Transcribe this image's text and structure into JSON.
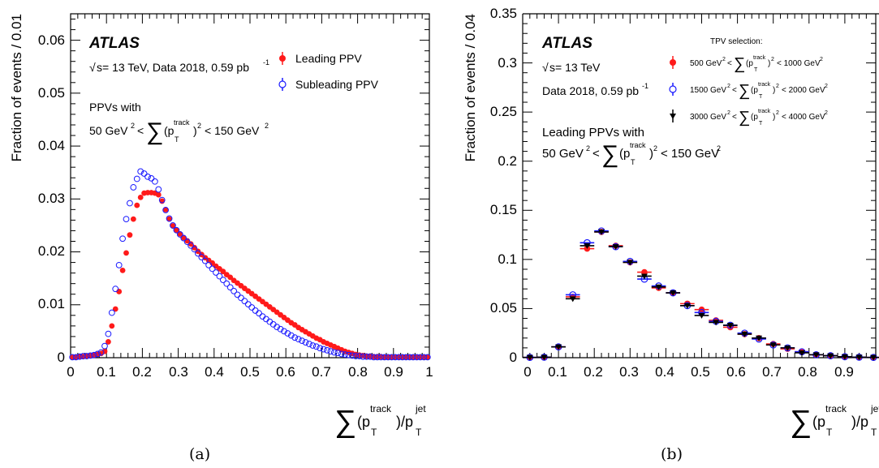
{
  "panels": [
    {
      "caption": "(a)",
      "atlas_label": "ATLAS",
      "energy_text": "s= 13 TeV, Data 2018, 0.59 pb",
      "lumi_exp": "-1",
      "selection_title": "PPVs with",
      "selection_range_prefix": "50 GeV",
      "selection_range_suffix": "< 150 GeV",
      "ylabel": "Fraction of events / 0.01",
      "yticks": [
        "0",
        "0.01",
        "0.02",
        "0.03",
        "0.04",
        "0.05",
        "0.06"
      ],
      "xticks": [
        "0",
        "0.1",
        "0.2",
        "0.3",
        "0.4",
        "0.5",
        "0.6",
        "0.7",
        "0.8",
        "0.9",
        "1"
      ],
      "legend": [
        "Leading PPV",
        "Subleading PPV"
      ]
    },
    {
      "caption": "(b)",
      "atlas_label": "ATLAS",
      "energy_text": "s= 13 TeV",
      "data_text": "Data 2018, 0.59 pb",
      "lumi_exp": "-1",
      "selection_title": "Leading PPVs with",
      "selection_range_prefix": "50 GeV",
      "selection_range_suffix": "< 150 GeV",
      "legend_title": "TPV selection:",
      "ylabel": "Fraction of events / 0.04",
      "yticks": [
        "0",
        "0.05",
        "0.1",
        "0.15",
        "0.2",
        "0.25",
        "0.3",
        "0.35"
      ],
      "xticks": [
        "0",
        "0.1",
        "0.2",
        "0.3",
        "0.4",
        "0.5",
        "0.6",
        "0.7",
        "0.8",
        "0.9"
      ],
      "legend": [
        {
          "prefix": "500 GeV",
          "suffix": "< 1000 GeV"
        },
        {
          "prefix": "1500 GeV",
          "suffix": "< 2000 GeV"
        },
        {
          "prefix": "3000 GeV",
          "suffix": "< 4000 GeV"
        }
      ]
    }
  ],
  "colors": {
    "leading": "#ff1a1a",
    "subleading": "#1a1aff",
    "third": "#000000"
  },
  "chart_data": [
    {
      "type": "scatter",
      "xlim": [
        0,
        1
      ],
      "ylim": [
        0,
        0.065
      ],
      "series": [
        {
          "name": "Leading PPV",
          "x": [
            0.005,
            0.015,
            0.025,
            0.035,
            0.045,
            0.055,
            0.065,
            0.075,
            0.085,
            0.095,
            0.105,
            0.115,
            0.125,
            0.135,
            0.145,
            0.155,
            0.165,
            0.175,
            0.185,
            0.195,
            0.205,
            0.215,
            0.225,
            0.235,
            0.245,
            0.255,
            0.265,
            0.275,
            0.285,
            0.295,
            0.305,
            0.315,
            0.325,
            0.335,
            0.345,
            0.355,
            0.365,
            0.375,
            0.385,
            0.395,
            0.405,
            0.415,
            0.425,
            0.435,
            0.445,
            0.455,
            0.465,
            0.475,
            0.485,
            0.495,
            0.505,
            0.515,
            0.525,
            0.535,
            0.545,
            0.555,
            0.565,
            0.575,
            0.585,
            0.595,
            0.605,
            0.615,
            0.625,
            0.635,
            0.645,
            0.655,
            0.665,
            0.675,
            0.685,
            0.695,
            0.705,
            0.715,
            0.725,
            0.735,
            0.745,
            0.755,
            0.765,
            0.775,
            0.785,
            0.795,
            0.805,
            0.815,
            0.825,
            0.835,
            0.845,
            0.855,
            0.865,
            0.875,
            0.885,
            0.895,
            0.905,
            0.915,
            0.925,
            0.935,
            0.945,
            0.955,
            0.965,
            0.975,
            0.985,
            0.995
          ],
          "y": [
            0.0001,
            0.0001,
            0.0002,
            0.0002,
            0.0003,
            0.0004,
            0.0005,
            0.0006,
            0.0008,
            0.0012,
            0.003,
            0.006,
            0.0092,
            0.0125,
            0.0165,
            0.0198,
            0.0232,
            0.0262,
            0.0288,
            0.0303,
            0.0311,
            0.0312,
            0.0312,
            0.0311,
            0.0308,
            0.0296,
            0.028,
            0.0262,
            0.0249,
            0.0241,
            0.0234,
            0.0227,
            0.0221,
            0.0215,
            0.0208,
            0.0201,
            0.0195,
            0.0189,
            0.0184,
            0.0179,
            0.0173,
            0.0168,
            0.0163,
            0.0157,
            0.0152,
            0.0146,
            0.0141,
            0.0136,
            0.0131,
            0.0126,
            0.0121,
            0.0116,
            0.0111,
            0.0106,
            0.0101,
            0.0096,
            0.0091,
            0.0086,
            0.0081,
            0.0076,
            0.0071,
            0.0066,
            0.0062,
            0.0057,
            0.0053,
            0.0049,
            0.0045,
            0.0041,
            0.0037,
            0.0034,
            0.003,
            0.0027,
            0.0024,
            0.0021,
            0.0018,
            0.0015,
            0.0012,
            0.001,
            0.0008,
            0.0006,
            0.0005,
            0.0004,
            0.0003,
            0.0003,
            0.0002,
            0.0002,
            0.0002,
            0.0001,
            0.0001,
            0.0001,
            0.0001,
            0.0001,
            0.0001,
            0.0001,
            0.0001,
            0.0001,
            0.0001,
            0.0001,
            0.0001,
            0.0001
          ]
        },
        {
          "name": "Subleading PPV",
          "x": [
            0.005,
            0.015,
            0.025,
            0.035,
            0.045,
            0.055,
            0.065,
            0.075,
            0.085,
            0.095,
            0.105,
            0.115,
            0.125,
            0.135,
            0.145,
            0.155,
            0.165,
            0.175,
            0.185,
            0.195,
            0.205,
            0.215,
            0.225,
            0.235,
            0.245,
            0.255,
            0.265,
            0.275,
            0.285,
            0.295,
            0.305,
            0.315,
            0.325,
            0.335,
            0.345,
            0.355,
            0.365,
            0.375,
            0.385,
            0.395,
            0.405,
            0.415,
            0.425,
            0.435,
            0.445,
            0.455,
            0.465,
            0.475,
            0.485,
            0.495,
            0.505,
            0.515,
            0.525,
            0.535,
            0.545,
            0.555,
            0.565,
            0.575,
            0.585,
            0.595,
            0.605,
            0.615,
            0.625,
            0.635,
            0.645,
            0.655,
            0.665,
            0.675,
            0.685,
            0.695,
            0.705,
            0.715,
            0.725,
            0.735,
            0.745,
            0.755,
            0.765,
            0.775,
            0.785,
            0.795,
            0.805,
            0.815,
            0.825,
            0.835,
            0.845,
            0.855,
            0.865,
            0.875,
            0.885,
            0.895,
            0.905,
            0.915,
            0.925,
            0.935,
            0.945,
            0.955,
            0.965,
            0.975,
            0.985,
            0.995
          ],
          "y": [
            0.0001,
            0.0001,
            0.0002,
            0.0003,
            0.0003,
            0.0004,
            0.0005,
            0.0007,
            0.001,
            0.0022,
            0.0045,
            0.0085,
            0.013,
            0.0175,
            0.0225,
            0.0262,
            0.0292,
            0.0322,
            0.0338,
            0.0352,
            0.0348,
            0.0342,
            0.0339,
            0.0333,
            0.0318,
            0.0298,
            0.0279,
            0.0263,
            0.025,
            0.0241,
            0.0233,
            0.0226,
            0.0219,
            0.0212,
            0.0205,
            0.0197,
            0.019,
            0.0183,
            0.0175,
            0.0168,
            0.0161,
            0.0154,
            0.0147,
            0.014,
            0.0133,
            0.0126,
            0.0119,
            0.0113,
            0.0107,
            0.0101,
            0.0095,
            0.0089,
            0.0084,
            0.0078,
            0.0073,
            0.0068,
            0.0063,
            0.0058,
            0.0054,
            0.005,
            0.0046,
            0.0042,
            0.0038,
            0.0035,
            0.0032,
            0.0029,
            0.0026,
            0.0023,
            0.0021,
            0.0018,
            0.0016,
            0.0014,
            0.0012,
            0.001,
            0.0009,
            0.0007,
            0.0006,
            0.0005,
            0.0004,
            0.0003,
            0.0003,
            0.0002,
            0.0002,
            0.0002,
            0.0001,
            0.0001,
            0.0001,
            0.0001,
            0.0001,
            0.0001,
            0.0001,
            0.0001,
            0.0001,
            0.0001,
            0.0001,
            0.0001,
            0.0001,
            0.0001,
            0.0001,
            0.0001
          ]
        }
      ]
    },
    {
      "type": "scatter",
      "xlim": [
        0,
        1
      ],
      "ylim": [
        0,
        0.35
      ],
      "series": [
        {
          "name": "500 GeV² < Σ(pT track)² < 1000 GeV²",
          "x": [
            0.02,
            0.06,
            0.1,
            0.14,
            0.18,
            0.22,
            0.26,
            0.3,
            0.34,
            0.38,
            0.42,
            0.46,
            0.5,
            0.54,
            0.58,
            0.62,
            0.66,
            0.7,
            0.74,
            0.78,
            0.82,
            0.86,
            0.9,
            0.94,
            0.98
          ],
          "y": [
            0.0003,
            0.0005,
            0.011,
            0.062,
            0.111,
            0.128,
            0.114,
            0.097,
            0.087,
            0.071,
            0.066,
            0.055,
            0.049,
            0.038,
            0.031,
            0.024,
            0.02,
            0.014,
            0.009,
            0.006,
            0.003,
            0.002,
            0.001,
            0.0005,
            0.0003
          ]
        },
        {
          "name": "1500 GeV² < Σ(pT track)² < 2000 GeV²",
          "x": [
            0.02,
            0.06,
            0.1,
            0.14,
            0.18,
            0.22,
            0.26,
            0.3,
            0.34,
            0.38,
            0.42,
            0.46,
            0.5,
            0.54,
            0.58,
            0.62,
            0.66,
            0.7,
            0.74,
            0.78,
            0.82,
            0.86,
            0.9,
            0.94,
            0.98
          ],
          "y": [
            0.0003,
            0.0005,
            0.011,
            0.064,
            0.117,
            0.129,
            0.113,
            0.098,
            0.08,
            0.073,
            0.066,
            0.053,
            0.046,
            0.037,
            0.033,
            0.025,
            0.019,
            0.013,
            0.01,
            0.006,
            0.003,
            0.002,
            0.001,
            0.0005,
            0.0003
          ]
        },
        {
          "name": "3000 GeV² < Σ(pT track)² < 4000 GeV²",
          "x": [
            0.02,
            0.06,
            0.1,
            0.14,
            0.18,
            0.22,
            0.26,
            0.3,
            0.34,
            0.38,
            0.42,
            0.46,
            0.5,
            0.54,
            0.58,
            0.62,
            0.66,
            0.7,
            0.74,
            0.78,
            0.82,
            0.86,
            0.9,
            0.94,
            0.98
          ],
          "y": [
            0.0003,
            0.0005,
            0.011,
            0.06,
            0.114,
            0.128,
            0.113,
            0.097,
            0.083,
            0.072,
            0.066,
            0.053,
            0.043,
            0.036,
            0.033,
            0.024,
            0.02,
            0.013,
            0.01,
            0.005,
            0.003,
            0.002,
            0.001,
            0.0005,
            0.0003
          ]
        }
      ]
    }
  ]
}
